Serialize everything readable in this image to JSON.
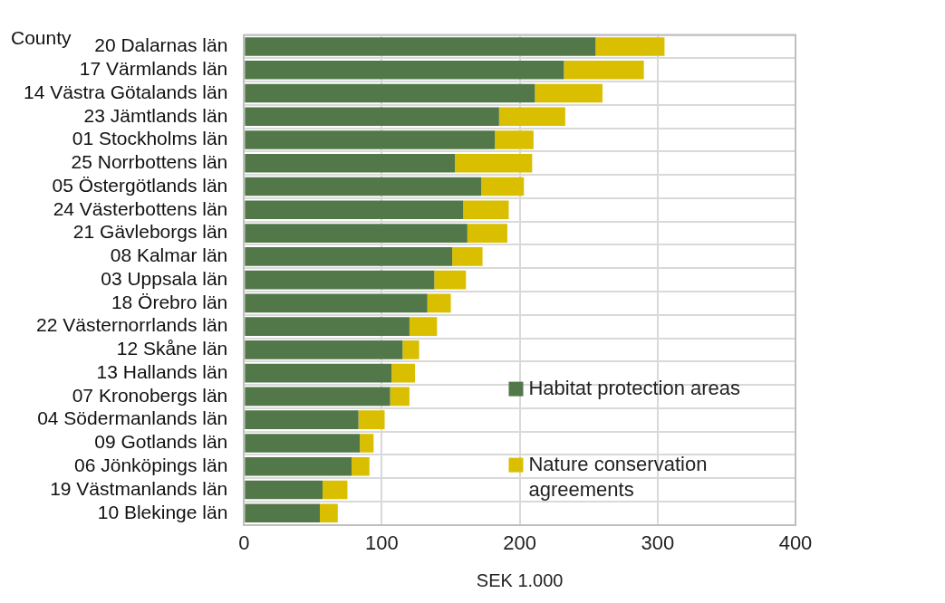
{
  "chart_data": {
    "type": "bar",
    "orientation": "horizontal",
    "stacked": true,
    "xlabel": "SEK 1.000",
    "ylabel": "County",
    "categories": [
      "20 Dalarnas län",
      "17 Värmlands län",
      "14 Västra Götalands län",
      "23 Jämtlands län",
      "01 Stockholms län",
      "25 Norrbottens län",
      "05 Östergötlands län",
      "24 Västerbottens län",
      "21 Gävleborgs län",
      "08 Kalmar län",
      "03 Uppsala län",
      "18 Örebro län",
      "22 Västernorrlands län",
      "12 Skåne län",
      "13 Hallands län",
      "07 Kronobergs län",
      "04 Södermanlands län",
      "09 Gotlands län",
      "06 Jönköpings län",
      "19 Västmanlands län",
      "10 Blekinge län"
    ],
    "series": [
      {
        "name": "Habitat protection areas",
        "color": "#52784a",
        "values": [
          255,
          232,
          211,
          185,
          182,
          153,
          172,
          159,
          162,
          151,
          138,
          133,
          120,
          115,
          107,
          106,
          83,
          84,
          78,
          57,
          55
        ]
      },
      {
        "name": "Nature conservation agreements",
        "color": "#d9bf00",
        "values": [
          50,
          58,
          49,
          48,
          28,
          56,
          31,
          33,
          29,
          22,
          23,
          17,
          20,
          12,
          17,
          14,
          19,
          10,
          13,
          18,
          13
        ]
      }
    ],
    "xlim": [
      0,
      400
    ],
    "xticks": [
      0,
      100,
      200,
      300,
      400
    ],
    "grid": true,
    "legend": "bottom right"
  }
}
